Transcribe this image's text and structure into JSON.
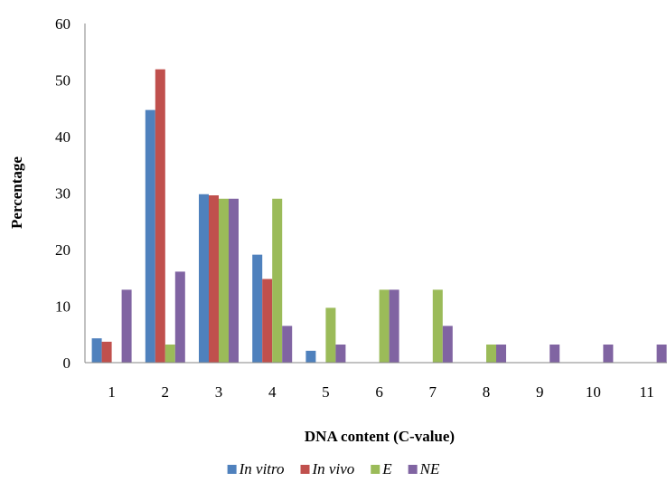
{
  "chart_data": {
    "type": "bar",
    "title": "",
    "xlabel": "DNA content (C-value)",
    "ylabel": "Percentage",
    "categories": [
      "1",
      "2",
      "3",
      "4",
      "5",
      "6",
      "7",
      "8",
      "9",
      "10",
      "11"
    ],
    "ylim": [
      0,
      60
    ],
    "yticks": [
      0,
      10,
      20,
      30,
      40,
      50,
      60
    ],
    "grid": false,
    "legend_position": "bottom",
    "series": [
      {
        "name": "In vitro",
        "color": "#4F81BD",
        "values": [
          4.3,
          44.7,
          29.8,
          19.1,
          2.1,
          0,
          0,
          0,
          0,
          0,
          0
        ]
      },
      {
        "name": "In vivo",
        "color": "#C0504D",
        "values": [
          3.7,
          51.9,
          29.6,
          14.8,
          0,
          0,
          0,
          0,
          0,
          0,
          0
        ]
      },
      {
        "name": "E",
        "color": "#9BBB59",
        "values": [
          0,
          3.2,
          29.0,
          29.0,
          9.7,
          12.9,
          12.9,
          3.2,
          0,
          0,
          0
        ]
      },
      {
        "name": "NE",
        "color": "#8064A2",
        "values": [
          12.9,
          16.1,
          29.0,
          6.5,
          3.2,
          12.9,
          6.5,
          3.2,
          3.2,
          3.2,
          3.2
        ]
      }
    ]
  }
}
